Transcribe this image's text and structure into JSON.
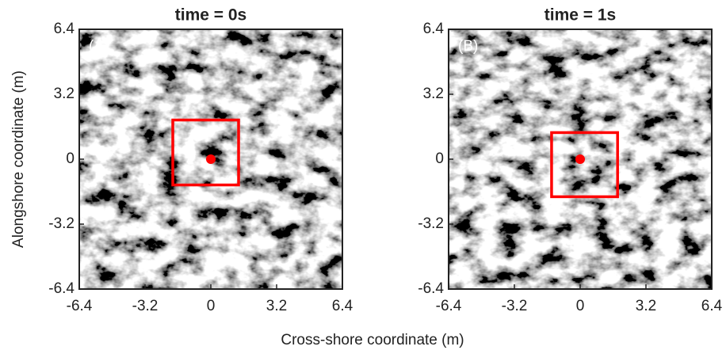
{
  "xlabel": "Cross-shore coordinate (m)",
  "ylabel": "Alongshore coordinate (m)",
  "chart_data": [
    {
      "type": "image",
      "title": "time = 0s",
      "panel_label": "(A)",
      "xlim": [
        -6.4,
        6.4
      ],
      "xticks": [
        -6.4,
        -3.2,
        0,
        3.2,
        6.4
      ],
      "ylim": [
        -6.4,
        6.4
      ],
      "yticks": [
        -6.4,
        -3.2,
        0,
        3.2,
        6.4
      ],
      "point": {
        "x": 0,
        "y": 0,
        "color": "#ff0000"
      },
      "box": {
        "x": [
          -1.85,
          1.35
        ],
        "y": [
          -1.27,
          1.93
        ],
        "color": "#ff0000"
      }
    },
    {
      "type": "image",
      "title": "time = 1s",
      "panel_label": "(B)",
      "xlim": [
        -6.4,
        6.4
      ],
      "xticks": [
        -6.4,
        -3.2,
        0,
        3.2,
        6.4
      ],
      "ylim": [
        -6.4,
        6.4
      ],
      "yticks": [
        -6.4,
        -3.2,
        0,
        3.2,
        6.4
      ],
      "point": {
        "x": 0,
        "y": 0,
        "color": "#ff0000"
      },
      "box": {
        "x": [
          -1.39,
          1.82
        ],
        "y": [
          -1.85,
          1.31
        ],
        "color": "#ff0000"
      }
    }
  ]
}
